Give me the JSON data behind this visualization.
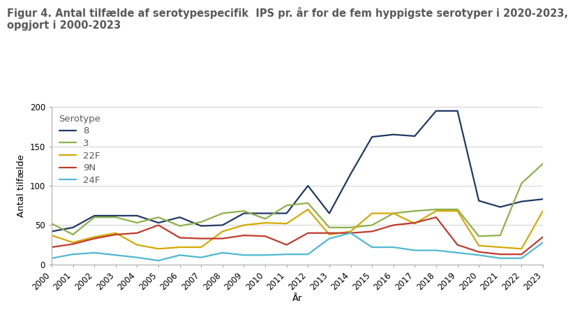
{
  "title_line1": "Figur 4. Antal tilfælde af serotypespecifik  IPS pr. år for de fem hyppigste serotyper i 2020-2023,",
  "title_line2": "opgjort i 2000-2023",
  "xlabel": "År",
  "ylabel": "Antal tilfælde",
  "years": [
    2000,
    2001,
    2002,
    2003,
    2004,
    2005,
    2006,
    2007,
    2008,
    2009,
    2010,
    2011,
    2012,
    2013,
    2014,
    2015,
    2016,
    2017,
    2018,
    2019,
    2020,
    2021,
    2022,
    2023
  ],
  "series": [
    {
      "label": "8",
      "color": "#1f3864",
      "data": [
        42,
        47,
        62,
        62,
        62,
        53,
        60,
        49,
        50,
        65,
        65,
        65,
        100,
        65,
        115,
        162,
        165,
        163,
        195,
        195,
        81,
        73,
        80,
        83
      ]
    },
    {
      "label": "3",
      "color": "#8db04a",
      "data": [
        52,
        38,
        60,
        60,
        53,
        60,
        49,
        54,
        65,
        68,
        58,
        75,
        78,
        47,
        47,
        50,
        65,
        68,
        70,
        70,
        36,
        37,
        103,
        128
      ]
    },
    {
      "label": "22F",
      "color": "#d4a900",
      "data": [
        37,
        28,
        35,
        40,
        25,
        20,
        22,
        22,
        42,
        50,
        53,
        52,
        70,
        38,
        42,
        65,
        65,
        52,
        68,
        68,
        24,
        22,
        20,
        68
      ]
    },
    {
      "label": "9N",
      "color": "#c0392b",
      "data": [
        22,
        26,
        33,
        38,
        40,
        50,
        34,
        33,
        33,
        37,
        36,
        25,
        40,
        40,
        40,
        42,
        50,
        53,
        60,
        25,
        16,
        13,
        13,
        35
      ]
    },
    {
      "label": "24F",
      "color": "#4db8d4",
      "data": [
        8,
        13,
        15,
        12,
        9,
        5,
        12,
        9,
        15,
        12,
        12,
        13,
        13,
        33,
        40,
        22,
        22,
        18,
        18,
        15,
        12,
        8,
        8,
        28
      ]
    }
  ],
  "ylim": [
    0,
    200
  ],
  "yticks": [
    0,
    50,
    100,
    150,
    200
  ],
  "legend_title": "Serotype",
  "background_color": "#ffffff",
  "grid_color": "#c8c8c8",
  "title_color": "#595959",
  "title_fontsize": 10.5,
  "axis_label_fontsize": 9.5,
  "tick_fontsize": 8.5,
  "legend_fontsize": 9.5,
  "line_width": 1.6
}
